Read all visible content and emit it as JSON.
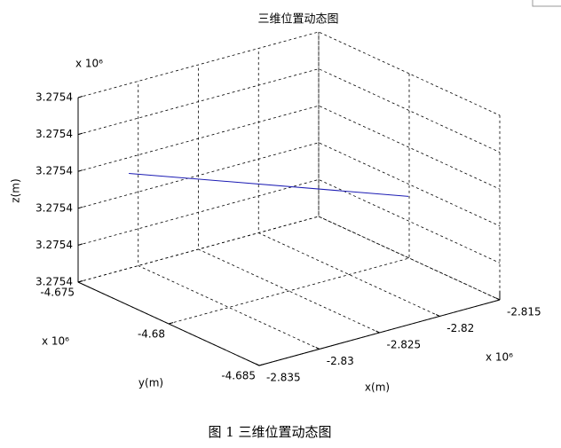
{
  "chart_data": {
    "type": "line3d",
    "title": "三维位置动态图",
    "caption": "图 1 三维位置动态图",
    "xlabel": "x(m)",
    "ylabel": "y(m)",
    "zlabel": "z(m)",
    "x_multiplier": "x 10⁶",
    "y_multiplier": "x 10⁶",
    "z_multiplier": "x 10⁶",
    "series": [
      {
        "x": [
          -2.833,
          -2.81808
        ],
        "y": [
          -4.67647,
          -4.682
        ],
        "values": [
          3.275411,
          3.275404
        ],
        "color": "#1c1cb4"
      }
    ],
    "xlim": [
      -2.835,
      -2.815
    ],
    "xticks": [
      -2.835,
      -2.83,
      -2.825,
      -2.82,
      -2.815
    ],
    "ylim": [
      -4.685,
      -4.675
    ],
    "yticks": [
      -4.685,
      -4.68,
      -4.675
    ],
    "zlim": [
      3.27538,
      3.27543
    ],
    "zticks": [
      {
        "value": 3.27538,
        "label": "3.2754"
      },
      {
        "value": 3.27539,
        "label": "3.2754"
      },
      {
        "value": 3.2754,
        "label": "3.2754"
      },
      {
        "value": 3.27541,
        "label": "3.2754"
      },
      {
        "value": 3.27542,
        "label": "3.2754"
      },
      {
        "value": 3.27543,
        "label": "3.2754"
      }
    ],
    "grid": true
  }
}
